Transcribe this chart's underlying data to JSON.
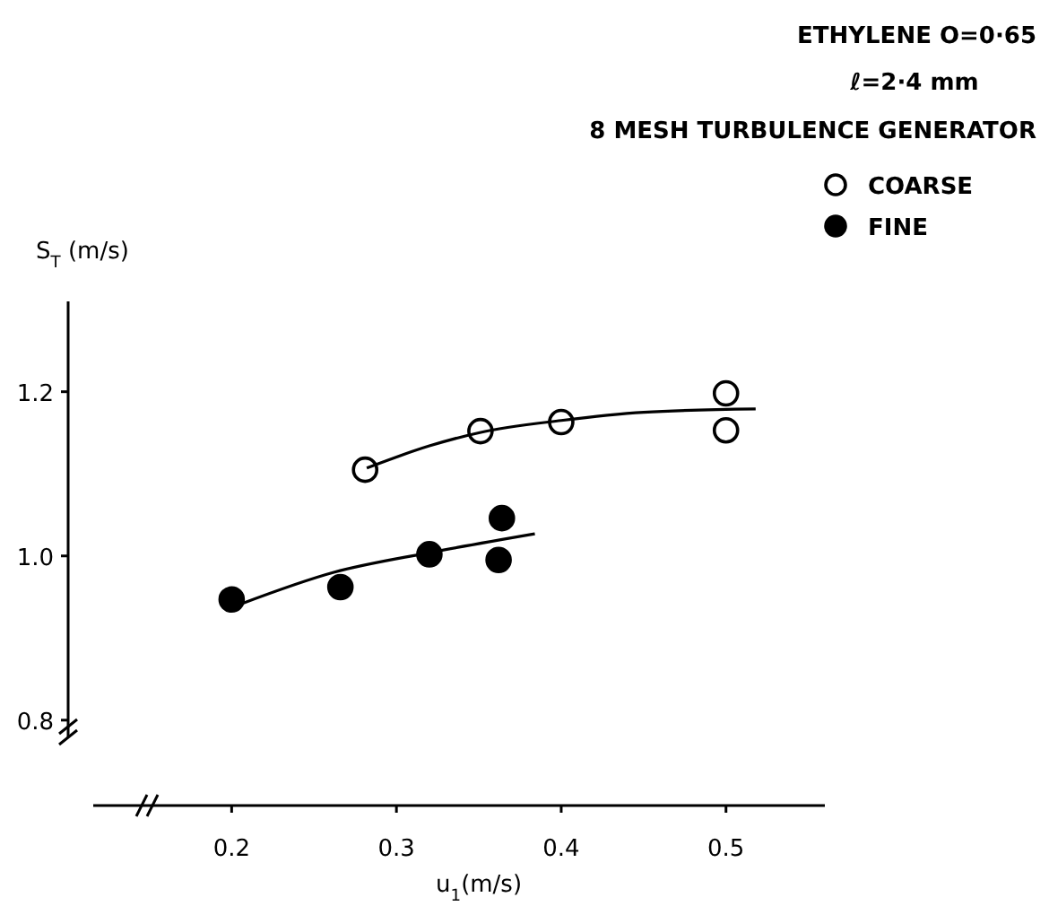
{
  "chart_data": {
    "type": "scatter",
    "title": "ETHYLENE O=0·65",
    "subtitle": "ℓ=2·4 mm",
    "annotations": [
      "8 MESH TURBULENCE GENERATOR"
    ],
    "xlabel": "u$_{1}$(m/s)",
    "ylabel": "S$_{T}$ (m/s)",
    "xlim": [
      0.116,
      0.56
    ],
    "ylim": [
      0.696,
      1.31
    ],
    "xticks": [
      0.2,
      0.3,
      0.4,
      0.5
    ],
    "yticks": [
      0.8,
      {
        "value": 1.0,
        "label": "1.0"
      },
      1.2
    ],
    "grid": false,
    "legend": "top right",
    "marker": "circle",
    "series": [
      {
        "name": "COARSE",
        "color": "#000000",
        "x": [
          0.281,
          0.351,
          0.4,
          0.5,
          0.5
        ],
        "values": [
          1.105,
          1.152,
          1.163,
          1.198,
          1.153
        ]
      },
      {
        "name": "FINE",
        "color": "#000000",
        "x": [
          0.2,
          0.266,
          0.32,
          0.364,
          0.362
        ],
        "values": [
          0.947,
          0.962,
          1.002,
          1.046,
          0.995
        ]
      },
      {
        "type": "line",
        "marker": "none",
        "color": "#000000",
        "x": [
          0.282,
          0.32,
          0.35,
          0.4,
          0.45,
          0.518
        ],
        "values": [
          1.107,
          1.134,
          1.15,
          1.165,
          1.175,
          1.179
        ]
      },
      {
        "type": "line",
        "marker": "none",
        "color": "#000000",
        "x": [
          0.205,
          0.262,
          0.32,
          0.384
        ],
        "values": [
          0.941,
          0.98,
          1.004,
          1.027
        ]
      }
    ]
  }
}
